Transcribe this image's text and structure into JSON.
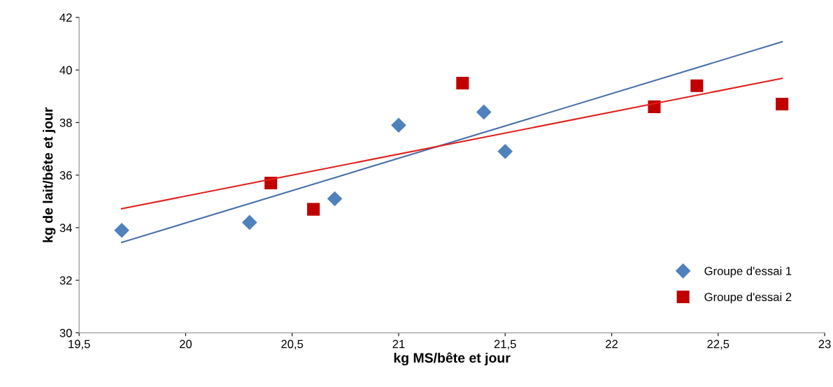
{
  "chart_data": {
    "type": "scatter",
    "xlabel": "kg MS/bête et jour",
    "ylabel": "kg de lait/bête et jour",
    "xlim": [
      19.5,
      23
    ],
    "xticks": [
      {
        "value": 19.5,
        "label": "19,5"
      },
      {
        "value": 20,
        "label": "20"
      },
      {
        "value": 20.5,
        "label": "20,5"
      },
      {
        "value": 21,
        "label": "21"
      },
      {
        "value": 21.5,
        "label": "21,5"
      },
      {
        "value": 22,
        "label": "22"
      },
      {
        "value": 22.5,
        "label": "22,5"
      },
      {
        "value": 23,
        "label": "23"
      }
    ],
    "ylim": [
      30,
      42
    ],
    "yticks": [
      30,
      32,
      34,
      36,
      38,
      40,
      42
    ],
    "grid": false,
    "legend": "bottom right",
    "series": [
      {
        "name": "Groupe d'essai 1",
        "color": "#4f81bd",
        "marker": "diamond",
        "x": [
          19.7,
          20.3,
          20.7,
          21.0,
          21.4,
          21.5
        ],
        "values": [
          33.9,
          34.2,
          35.1,
          37.9,
          38.4,
          36.9
        ]
      },
      {
        "name": "Groupe d'essai 2",
        "color": "#c00000",
        "marker": "square",
        "x": [
          20.4,
          20.6,
          21.3,
          22.2,
          22.4,
          22.8
        ],
        "values": [
          35.7,
          34.7,
          39.5,
          38.6,
          39.4,
          38.7
        ]
      },
      {
        "type": "line",
        "color": "#4a6fa8",
        "marker": "none",
        "x": [
          19.7,
          22.8
        ],
        "values": [
          33.44,
          41.07
        ]
      },
      {
        "type": "line",
        "color": "#e0201c",
        "marker": "none",
        "x": [
          19.7,
          22.8
        ],
        "values": [
          34.72,
          39.68
        ]
      }
    ]
  }
}
